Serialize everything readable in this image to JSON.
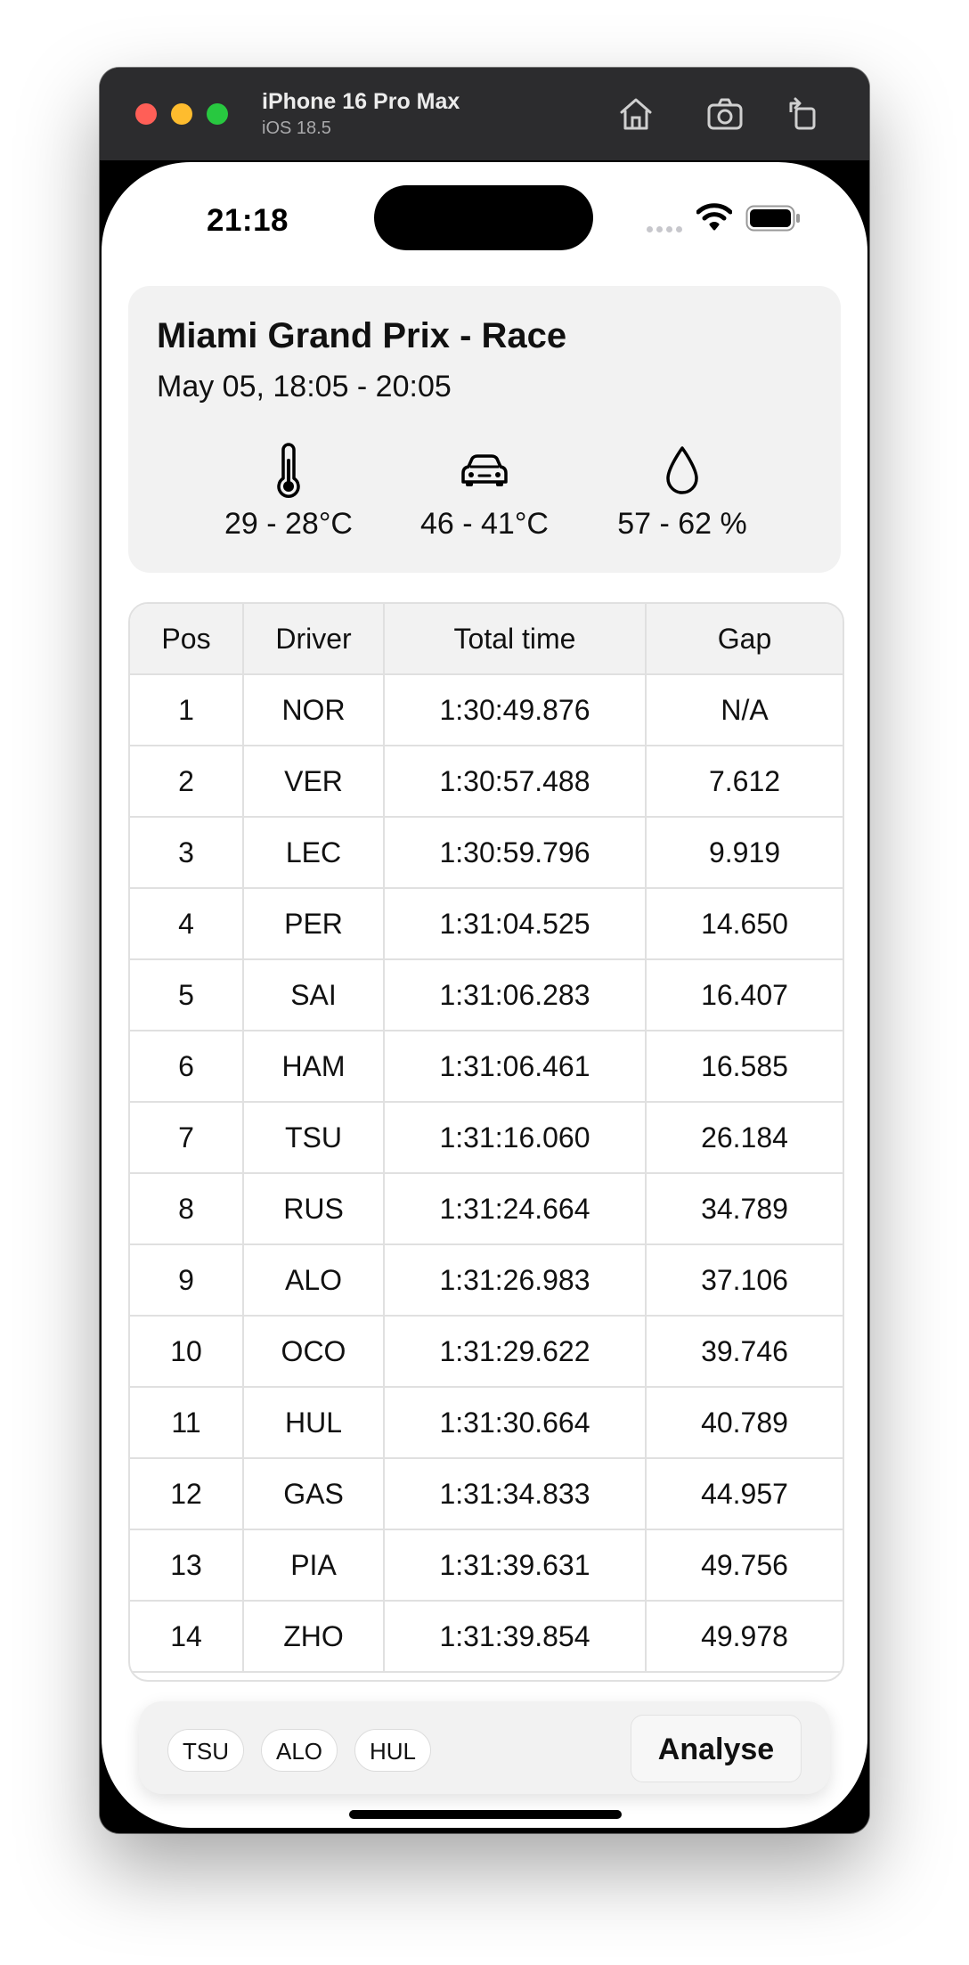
{
  "simulator": {
    "device_name": "iPhone 16 Pro Max",
    "os_version": "iOS 18.5",
    "icons": [
      "home-icon",
      "screenshot-camera-icon",
      "rotate-icon"
    ]
  },
  "status_bar": {
    "time": "21:18",
    "icons": [
      "cellular-dots-icon",
      "wifi-icon",
      "battery-icon"
    ]
  },
  "session": {
    "title": "Miami Grand Prix - Race",
    "date_range": "May 05, 18:05 - 20:05",
    "weather": {
      "air_temp": {
        "icon": "thermometer-icon",
        "value": "29 - 28°C"
      },
      "track_temp": {
        "icon": "car-icon",
        "value": "46 - 41°C"
      },
      "humidity": {
        "icon": "droplet-icon",
        "value": "57 - 62 %"
      }
    }
  },
  "results": {
    "headers": {
      "pos": "Pos",
      "driver": "Driver",
      "total_time": "Total time",
      "gap": "Gap"
    },
    "rows": [
      {
        "pos": "1",
        "driver": "NOR",
        "total_time": "1:30:49.876",
        "gap": "N/A"
      },
      {
        "pos": "2",
        "driver": "VER",
        "total_time": "1:30:57.488",
        "gap": "7.612"
      },
      {
        "pos": "3",
        "driver": "LEC",
        "total_time": "1:30:59.796",
        "gap": "9.919"
      },
      {
        "pos": "4",
        "driver": "PER",
        "total_time": "1:31:04.525",
        "gap": "14.650"
      },
      {
        "pos": "5",
        "driver": "SAI",
        "total_time": "1:31:06.283",
        "gap": "16.407"
      },
      {
        "pos": "6",
        "driver": "HAM",
        "total_time": "1:31:06.461",
        "gap": "16.585"
      },
      {
        "pos": "7",
        "driver": "TSU",
        "total_time": "1:31:16.060",
        "gap": "26.184"
      },
      {
        "pos": "8",
        "driver": "RUS",
        "total_time": "1:31:24.664",
        "gap": "34.789"
      },
      {
        "pos": "9",
        "driver": "ALO",
        "total_time": "1:31:26.983",
        "gap": "37.106"
      },
      {
        "pos": "10",
        "driver": "OCO",
        "total_time": "1:31:29.622",
        "gap": "39.746"
      },
      {
        "pos": "11",
        "driver": "HUL",
        "total_time": "1:31:30.664",
        "gap": "40.789"
      },
      {
        "pos": "12",
        "driver": "GAS",
        "total_time": "1:31:34.833",
        "gap": "44.957"
      },
      {
        "pos": "13",
        "driver": "PIA",
        "total_time": "1:31:39.631",
        "gap": "49.756"
      },
      {
        "pos": "14",
        "driver": "ZHO",
        "total_time": "1:31:39.854",
        "gap": "49.978"
      }
    ]
  },
  "selection": {
    "chips": [
      "TSU",
      "ALO",
      "HUL"
    ],
    "analyse_label": "Analyse"
  }
}
